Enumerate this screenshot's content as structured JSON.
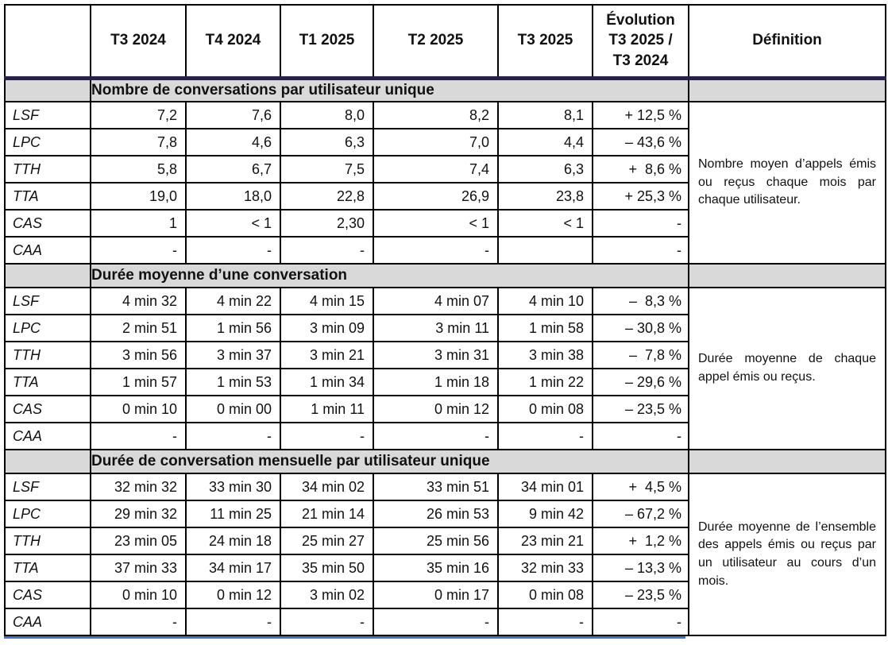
{
  "header": {
    "corner": "",
    "quarters": [
      "T3 2024",
      "T4 2024",
      "T1 2025",
      "T2 2025",
      "T3 2025"
    ],
    "evolution_label": "Évolution\nT3 2025 /\nT3 2024",
    "definition_label": "Définition"
  },
  "sections": [
    {
      "title": "Nombre de conversations par utilisateur unique",
      "definition": "Nombre moyen d’appels émis ou reçus chaque mois par chaque utilisateur.",
      "rows": [
        {
          "label": "LSF",
          "values": [
            "7,2",
            "7,6",
            "8,0",
            "8,2",
            "8,1"
          ],
          "evolution": "+ 12,5 %"
        },
        {
          "label": "LPC",
          "values": [
            "7,8",
            "4,6",
            "6,3",
            "7,0",
            "4,4"
          ],
          "evolution": "– 43,6 %"
        },
        {
          "label": "TTH",
          "values": [
            "5,8",
            "6,7",
            "7,5",
            "7,4",
            "6,3"
          ],
          "evolution": "+  8,6 %"
        },
        {
          "label": "TTA",
          "values": [
            "19,0",
            "18,0",
            "22,8",
            "26,9",
            "23,8"
          ],
          "evolution": "+ 25,3 %"
        },
        {
          "label": "CAS",
          "values": [
            "1",
            "< 1",
            "2,30",
            "< 1",
            "< 1"
          ],
          "evolution": "-"
        },
        {
          "label": "CAA",
          "values": [
            "-",
            "-",
            "-",
            "-",
            ""
          ],
          "evolution": "-"
        }
      ]
    },
    {
      "title": "Durée moyenne d’une conversation",
      "definition": "Durée moyenne de chaque appel émis ou reçus.",
      "rows": [
        {
          "label": "LSF",
          "values": [
            "4 min 32",
            "4 min 22",
            "4 min 15",
            "4 min 07",
            "4 min 10"
          ],
          "evolution": "–  8,3 %"
        },
        {
          "label": "LPC",
          "values": [
            "2 min 51",
            "1 min 56",
            "3 min 09",
            "3 min 11",
            "1 min 58"
          ],
          "evolution": "– 30,8 %"
        },
        {
          "label": "TTH",
          "values": [
            "3 min 56",
            "3 min 37",
            "3 min 21",
            "3 min 31",
            "3 min 38"
          ],
          "evolution": "–  7,8 %"
        },
        {
          "label": "TTA",
          "values": [
            "1 min 57",
            "1 min 53",
            "1 min 34",
            "1 min 18",
            "1 min 22"
          ],
          "evolution": "– 29,6 %"
        },
        {
          "label": "CAS",
          "values": [
            "0 min 10",
            "0 min 00",
            "1 min 11",
            "0 min 12",
            "0 min 08"
          ],
          "evolution": "– 23,5 %"
        },
        {
          "label": "CAA",
          "values": [
            "-",
            "-",
            "-",
            "-",
            "-"
          ],
          "evolution": "-"
        }
      ]
    },
    {
      "title": "Durée de conversation mensuelle par utilisateur unique",
      "definition": "Durée moyenne de l’ensemble des appels émis ou reçus par un utilisateur au cours d’un mois.",
      "rows": [
        {
          "label": "LSF",
          "values": [
            "32 min 32",
            "33 min 30",
            "34 min 02",
            "33 min 51",
            "34 min 01"
          ],
          "evolution": "+  4,5 %"
        },
        {
          "label": "LPC",
          "values": [
            "29 min 32",
            "11 min 25",
            "21 min 14",
            "26 min 53",
            "9 min 42"
          ],
          "evolution": "– 67,2 %"
        },
        {
          "label": "TTH",
          "values": [
            "23 min 05",
            "24 min 18",
            "25 min 27",
            "25 min 56",
            "23 min 21"
          ],
          "evolution": "+  1,2 %"
        },
        {
          "label": "TTA",
          "values": [
            "37 min 33",
            "34 min 17",
            "35 min 50",
            "35 min 16",
            "32 min 33"
          ],
          "evolution": "– 13,3 %"
        },
        {
          "label": "CAS",
          "values": [
            "0 min 10",
            "0 min 12",
            "3 min 02",
            "0 min 17",
            "0 min 08"
          ],
          "evolution": "– 23,5 %"
        },
        {
          "label": "CAA",
          "values": [
            "-",
            "-",
            "-",
            "-",
            "-"
          ],
          "evolution": "-"
        }
      ]
    }
  ],
  "colors": {
    "header_separator": "#262347",
    "section_band": "#d9d9d9",
    "cell_border": "#000000",
    "bottom_accent": "#4472c4"
  }
}
